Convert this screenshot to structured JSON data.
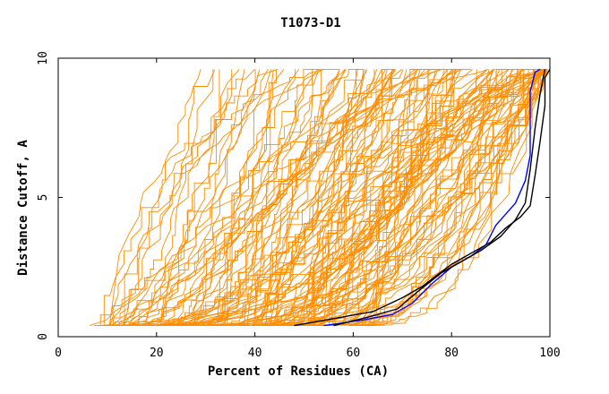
{
  "chart_data": {
    "type": "line",
    "title": "T1073-D1",
    "xlabel": "Percent of Residues (CA)",
    "ylabel": "Distance Cutoff, A",
    "xlim": [
      0,
      100
    ],
    "ylim": [
      0,
      10
    ],
    "xticks": [
      "0",
      "20",
      "40",
      "60",
      "80",
      "100"
    ],
    "yticks": [
      "0",
      "5",
      "10"
    ],
    "grid": false,
    "background_series_color": "#ff8c00",
    "highlight_series": [
      {
        "color": "#0000ff",
        "x": [
          54,
          62,
          68,
          72,
          76,
          80,
          84,
          87,
          89,
          91,
          93,
          95,
          96,
          96,
          97,
          98
        ],
        "y": [
          0.4,
          0.6,
          0.8,
          1.2,
          1.9,
          2.5,
          2.9,
          3.3,
          4.0,
          4.4,
          4.8,
          5.6,
          6.5,
          8.8,
          9.5,
          9.6
        ]
      },
      {
        "color": "#000000",
        "x": [
          48,
          64,
          70,
          74,
          77,
          80,
          84,
          88,
          91,
          94,
          96,
          97,
          98,
          99,
          99,
          100
        ],
        "y": [
          0.4,
          0.9,
          1.4,
          1.8,
          2.2,
          2.6,
          3.0,
          3.4,
          3.9,
          4.3,
          4.7,
          5.8,
          7.0,
          8.3,
          9.3,
          9.6
        ]
      },
      {
        "color": "#000000",
        "x": [
          56,
          63,
          69,
          73,
          78,
          82,
          86,
          90,
          93,
          95,
          96,
          97,
          98,
          99
        ],
        "y": [
          0.4,
          0.7,
          1.0,
          1.6,
          2.3,
          2.7,
          3.1,
          3.6,
          4.2,
          4.8,
          6.0,
          7.5,
          8.7,
          9.6
        ]
      }
    ]
  }
}
